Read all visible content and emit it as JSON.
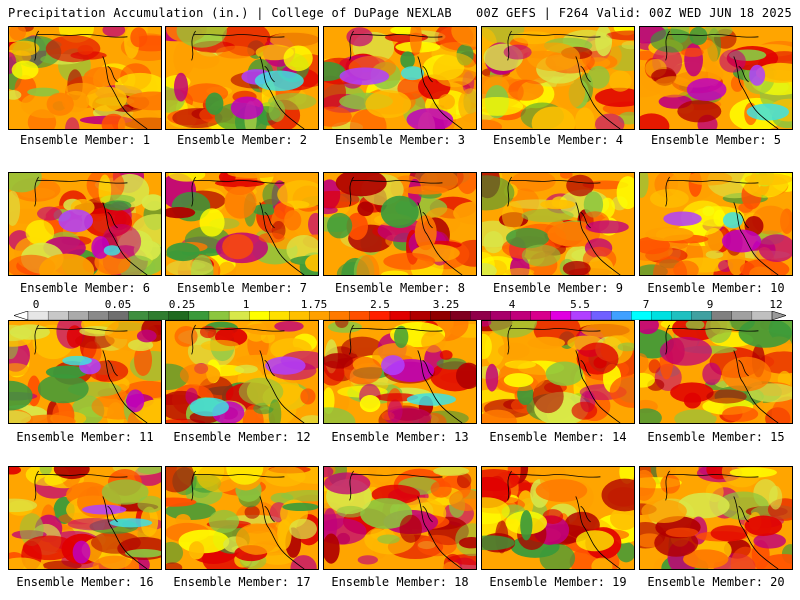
{
  "header": {
    "title": "Precipitation Accumulation (in.) | College of DuPage NEXLAB",
    "run_info": "00Z GEFS | F264 Valid: 00Z WED JUN 18 2025"
  },
  "colorbar": {
    "labels": [
      "0",
      "0.05",
      "0.25",
      "1",
      "1.75",
      "2.5",
      "3.25",
      "4",
      "5.5",
      "7",
      "9",
      "12"
    ],
    "colors": [
      "#e6e6e6",
      "#c8c8c8",
      "#aaaaaa",
      "#8a8a8a",
      "#6f6f6f",
      "#3f8f3f",
      "#2f7d2f",
      "#1f6b1f",
      "#3a9a3a",
      "#8cc63f",
      "#d8e84a",
      "#ffff00",
      "#ffe000",
      "#ffc000",
      "#ffa000",
      "#ff7a00",
      "#ff5000",
      "#ff2000",
      "#e00000",
      "#b00000",
      "#900000",
      "#800020",
      "#90004a",
      "#a8006a",
      "#c0007a",
      "#d8008c",
      "#e000e0",
      "#b040ff",
      "#7060ff",
      "#40a0ff",
      "#00ffff",
      "#00e0e0",
      "#20c0c0",
      "#40a0a0",
      "#808080",
      "#a0a0a0",
      "#c0c0c0"
    ]
  },
  "members": [
    {
      "label": "Ensemble Member: 1"
    },
    {
      "label": "Ensemble Member: 2"
    },
    {
      "label": "Ensemble Member: 3"
    },
    {
      "label": "Ensemble Member: 4"
    },
    {
      "label": "Ensemble Member: 5"
    },
    {
      "label": "Ensemble Member: 6"
    },
    {
      "label": "Ensemble Member: 7"
    },
    {
      "label": "Ensemble Member: 8"
    },
    {
      "label": "Ensemble Member: 9"
    },
    {
      "label": "Ensemble Member: 10"
    },
    {
      "label": "Ensemble Member: 11"
    },
    {
      "label": "Ensemble Member: 12"
    },
    {
      "label": "Ensemble Member: 13"
    },
    {
      "label": "Ensemble Member: 14"
    },
    {
      "label": "Ensemble Member: 15"
    },
    {
      "label": "Ensemble Member: 16"
    },
    {
      "label": "Ensemble Member: 17"
    },
    {
      "label": "Ensemble Member: 18"
    },
    {
      "label": "Ensemble Member: 19"
    },
    {
      "label": "Ensemble Member: 20"
    }
  ]
}
